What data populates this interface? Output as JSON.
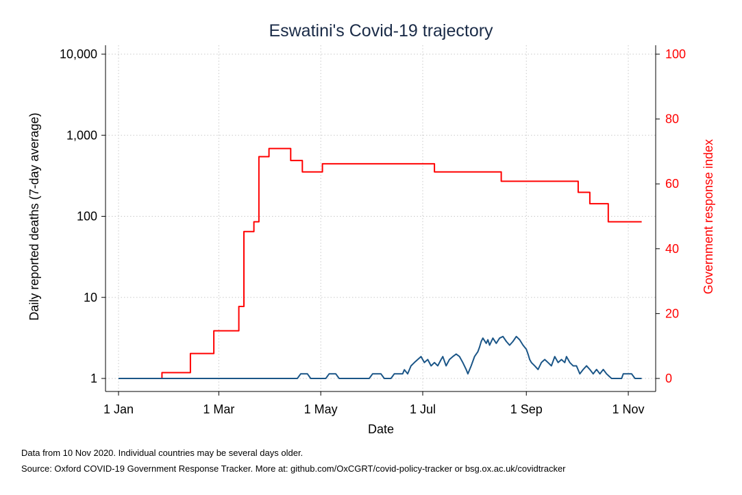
{
  "chart_data": {
    "type": "line",
    "title": "Eswatini's Covid-19 trajectory",
    "xlabel": "Date",
    "ylabel_left": "Daily reported deaths (7-day average)",
    "ylabel_right": "Government response index",
    "x_ticks": [
      {
        "date": "2020-01-01",
        "label": "1 Jan"
      },
      {
        "date": "2020-03-01",
        "label": "1 Mar"
      },
      {
        "date": "2020-05-01",
        "label": "1 May"
      },
      {
        "date": "2020-07-01",
        "label": "1 Jul"
      },
      {
        "date": "2020-09-01",
        "label": "1 Sep"
      },
      {
        "date": "2020-11-01",
        "label": "1 Nov"
      }
    ],
    "xlim": [
      "2020-01-01",
      "2020-11-10"
    ],
    "y_left": {
      "scale": "log",
      "ylim": [
        1,
        10000
      ],
      "ticks": [
        {
          "value": 1,
          "label": "1"
        },
        {
          "value": 10,
          "label": "10"
        },
        {
          "value": 100,
          "label": "100"
        },
        {
          "value": 1000,
          "label": "1,000"
        },
        {
          "value": 10000,
          "label": "10,000"
        }
      ]
    },
    "y_right": {
      "scale": "linear",
      "ylim": [
        0,
        100
      ],
      "ticks": [
        {
          "value": 0,
          "label": "0"
        },
        {
          "value": 20,
          "label": "20"
        },
        {
          "value": 40,
          "label": "40"
        },
        {
          "value": 60,
          "label": "60"
        },
        {
          "value": 80,
          "label": "80"
        },
        {
          "value": 100,
          "label": "100"
        }
      ]
    },
    "grid": true,
    "series": [
      {
        "axis": "right",
        "color": "#ff0000",
        "step": true,
        "points": [
          [
            "2020-01-01",
            0
          ],
          [
            "2020-01-27",
            1.8
          ],
          [
            "2020-02-13",
            7.7
          ],
          [
            "2020-02-27",
            14.7
          ],
          [
            "2020-03-13",
            22.2
          ],
          [
            "2020-03-16",
            45.3
          ],
          [
            "2020-03-22",
            48.3
          ],
          [
            "2020-03-25",
            68.4
          ],
          [
            "2020-03-31",
            70.9
          ],
          [
            "2020-04-13",
            67.2
          ],
          [
            "2020-04-20",
            63.7
          ],
          [
            "2020-05-02",
            66.2
          ],
          [
            "2020-07-08",
            63.7
          ],
          [
            "2020-08-17",
            60.8
          ],
          [
            "2020-10-02",
            57.4
          ],
          [
            "2020-10-09",
            53.9
          ],
          [
            "2020-10-20",
            48.3
          ],
          [
            "2020-11-09",
            48.3
          ]
        ]
      },
      {
        "axis": "left",
        "color": "#1a5587",
        "step": false,
        "points": [
          [
            "2020-01-01",
            1
          ],
          [
            "2020-04-17",
            1
          ],
          [
            "2020-04-19",
            1.14
          ],
          [
            "2020-04-23",
            1.14
          ],
          [
            "2020-04-25",
            1
          ],
          [
            "2020-05-04",
            1
          ],
          [
            "2020-05-06",
            1.14
          ],
          [
            "2020-05-10",
            1.14
          ],
          [
            "2020-05-12",
            1
          ],
          [
            "2020-05-30",
            1
          ],
          [
            "2020-06-01",
            1.14
          ],
          [
            "2020-06-06",
            1.14
          ],
          [
            "2020-06-08",
            1
          ],
          [
            "2020-06-12",
            1
          ],
          [
            "2020-06-14",
            1.14
          ],
          [
            "2020-06-19",
            1.14
          ],
          [
            "2020-06-20",
            1.28
          ],
          [
            "2020-06-22",
            1.14
          ],
          [
            "2020-06-24",
            1.43
          ],
          [
            "2020-06-26",
            1.57
          ],
          [
            "2020-06-28",
            1.71
          ],
          [
            "2020-06-30",
            1.86
          ],
          [
            "2020-07-02",
            1.57
          ],
          [
            "2020-07-04",
            1.71
          ],
          [
            "2020-07-06",
            1.43
          ],
          [
            "2020-07-08",
            1.57
          ],
          [
            "2020-07-10",
            1.43
          ],
          [
            "2020-07-12",
            1.71
          ],
          [
            "2020-07-13",
            1.86
          ],
          [
            "2020-07-15",
            1.43
          ],
          [
            "2020-07-17",
            1.71
          ],
          [
            "2020-07-19",
            1.86
          ],
          [
            "2020-07-21",
            2.0
          ],
          [
            "2020-07-23",
            1.86
          ],
          [
            "2020-07-25",
            1.57
          ],
          [
            "2020-07-27",
            1.29
          ],
          [
            "2020-07-28",
            1.14
          ],
          [
            "2020-07-30",
            1.43
          ],
          [
            "2020-08-01",
            1.86
          ],
          [
            "2020-08-03",
            2.14
          ],
          [
            "2020-08-04",
            2.43
          ],
          [
            "2020-08-05",
            2.86
          ],
          [
            "2020-08-06",
            3.14
          ],
          [
            "2020-08-08",
            2.71
          ],
          [
            "2020-08-09",
            3.0
          ],
          [
            "2020-08-10",
            2.57
          ],
          [
            "2020-08-12",
            3.14
          ],
          [
            "2020-08-14",
            2.71
          ],
          [
            "2020-08-16",
            3.14
          ],
          [
            "2020-08-18",
            3.29
          ],
          [
            "2020-08-20",
            2.86
          ],
          [
            "2020-08-22",
            2.57
          ],
          [
            "2020-08-24",
            2.86
          ],
          [
            "2020-08-26",
            3.29
          ],
          [
            "2020-08-28",
            3.0
          ],
          [
            "2020-08-30",
            2.57
          ],
          [
            "2020-09-01",
            2.29
          ],
          [
            "2020-09-02",
            2.0
          ],
          [
            "2020-09-03",
            1.71
          ],
          [
            "2020-09-04",
            1.57
          ],
          [
            "2020-09-06",
            1.43
          ],
          [
            "2020-09-08",
            1.29
          ],
          [
            "2020-09-10",
            1.57
          ],
          [
            "2020-09-12",
            1.71
          ],
          [
            "2020-09-14",
            1.57
          ],
          [
            "2020-09-16",
            1.43
          ],
          [
            "2020-09-18",
            1.86
          ],
          [
            "2020-09-20",
            1.57
          ],
          [
            "2020-09-22",
            1.71
          ],
          [
            "2020-09-24",
            1.57
          ],
          [
            "2020-09-25",
            1.86
          ],
          [
            "2020-09-27",
            1.57
          ],
          [
            "2020-09-29",
            1.43
          ],
          [
            "2020-10-01",
            1.43
          ],
          [
            "2020-10-03",
            1.14
          ],
          [
            "2020-10-05",
            1.29
          ],
          [
            "2020-10-07",
            1.43
          ],
          [
            "2020-10-09",
            1.29
          ],
          [
            "2020-10-11",
            1.14
          ],
          [
            "2020-10-13",
            1.29
          ],
          [
            "2020-10-15",
            1.14
          ],
          [
            "2020-10-17",
            1.29
          ],
          [
            "2020-10-19",
            1.14
          ],
          [
            "2020-10-22",
            1
          ],
          [
            "2020-10-28",
            1
          ],
          [
            "2020-10-29",
            1.14
          ],
          [
            "2020-11-03",
            1.14
          ],
          [
            "2020-11-05",
            1
          ],
          [
            "2020-11-09",
            1
          ]
        ]
      }
    ]
  },
  "footnotes": {
    "line1": "Data from 10 Nov 2020. Individual countries may be several days older.",
    "line2": "Source: Oxford COVID-19 Government Response Tracker. More at: github.com/OxCGRT/covid-policy-tracker or bsg.ox.ac.uk/covidtracker"
  }
}
